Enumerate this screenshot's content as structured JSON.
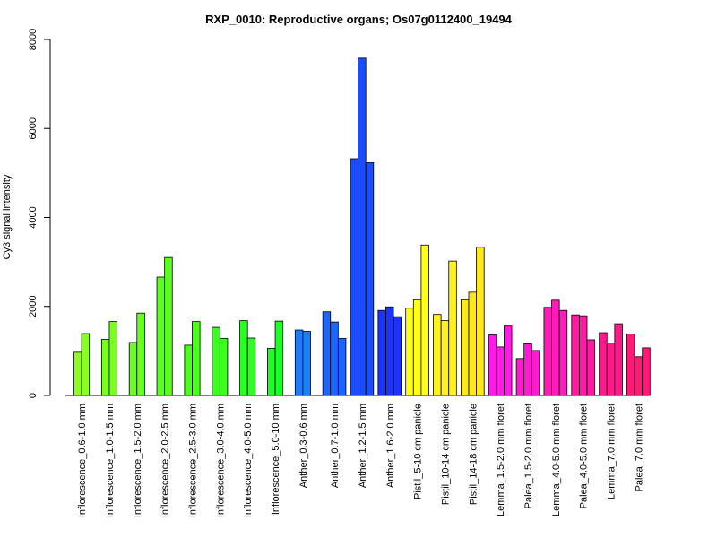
{
  "chart_data": {
    "type": "bar",
    "title": "RXP_0010: Reproductive organs; Os07g0112400_19494",
    "xlabel": "",
    "ylabel": "Cy3 signal intensity",
    "ylim": [
      0,
      8000
    ],
    "yticks": [
      "0",
      "2000",
      "4000",
      "6000",
      "8000"
    ],
    "grid": false,
    "groups": [
      {
        "label": "Inflorescence_0.6-1.0 mm",
        "color": "#8bff1f",
        "values": [
          970,
          1390
        ]
      },
      {
        "label": "Inflorescence_1.0-1.5 mm",
        "color": "#7aff1f",
        "values": [
          1260,
          1660
        ]
      },
      {
        "label": "Inflorescence_1.5-2.0 mm",
        "color": "#6aff1f",
        "values": [
          1190,
          1850
        ]
      },
      {
        "label": "Inflorescence_2.0-2.5 mm",
        "color": "#5aff1f",
        "values": [
          2660,
          3100
        ]
      },
      {
        "label": "Inflorescence_2.5-3.0 mm",
        "color": "#4aff1f",
        "values": [
          1130,
          1660
        ]
      },
      {
        "label": "Inflorescence_3.0-4.0 mm",
        "color": "#3aff1f",
        "values": [
          1530,
          1280
        ]
      },
      {
        "label": "Inflorescence_4.0-5.0 mm",
        "color": "#2aff1f",
        "values": [
          1680,
          1290
        ]
      },
      {
        "label": "Inflorescence_5.0-10 mm",
        "color": "#1aff24",
        "values": [
          1060,
          1670
        ]
      },
      {
        "label": "Anther_0.3-0.6 mm",
        "color": "#1a7fff",
        "values": [
          1470,
          1440
        ]
      },
      {
        "label": "Anther_0.7-1.0 mm",
        "color": "#1a66ff",
        "values": [
          1880,
          1650,
          1280
        ]
      },
      {
        "label": "Anther_1.2-1.5 mm",
        "color": "#1a4dff",
        "values": [
          5320,
          7580,
          5230
        ]
      },
      {
        "label": "Anther_1.6-2.0 mm",
        "color": "#1a33ff",
        "values": [
          1910,
          1990,
          1770
        ]
      },
      {
        "label": "Pistil_5-10 cm panicle",
        "color": "#ffff1a",
        "values": [
          1960,
          2150,
          3380
        ]
      },
      {
        "label": "Pistil_10-14 cm panicle",
        "color": "#fff21a",
        "values": [
          1820,
          1680,
          3020
        ]
      },
      {
        "label": "Pistil_14-18 cm panicle",
        "color": "#ffe81a",
        "values": [
          2150,
          2320,
          3330
        ]
      },
      {
        "label": "Lemma_1.5-2.0 mm floret",
        "color": "#ff1ae8",
        "values": [
          1360,
          1090,
          1560
        ]
      },
      {
        "label": "Palea_1.5-2.0 mm floret",
        "color": "#ff1ad1",
        "values": [
          830,
          1160,
          1010
        ]
      },
      {
        "label": "Lemma_4.0-5.0 mm floret",
        "color": "#ff1aba",
        "values": [
          1980,
          2140,
          1910
        ]
      },
      {
        "label": "Palea_4.0-5.0 mm floret",
        "color": "#ff1aa3",
        "values": [
          1810,
          1790,
          1250
        ]
      },
      {
        "label": "Lemma_7.0 mm floret",
        "color": "#ff1a8c",
        "values": [
          1410,
          1180,
          1610
        ]
      },
      {
        "label": "Palea_7.0 mm floret",
        "color": "#ff1a75",
        "values": [
          1380,
          870,
          1070
        ]
      }
    ]
  }
}
